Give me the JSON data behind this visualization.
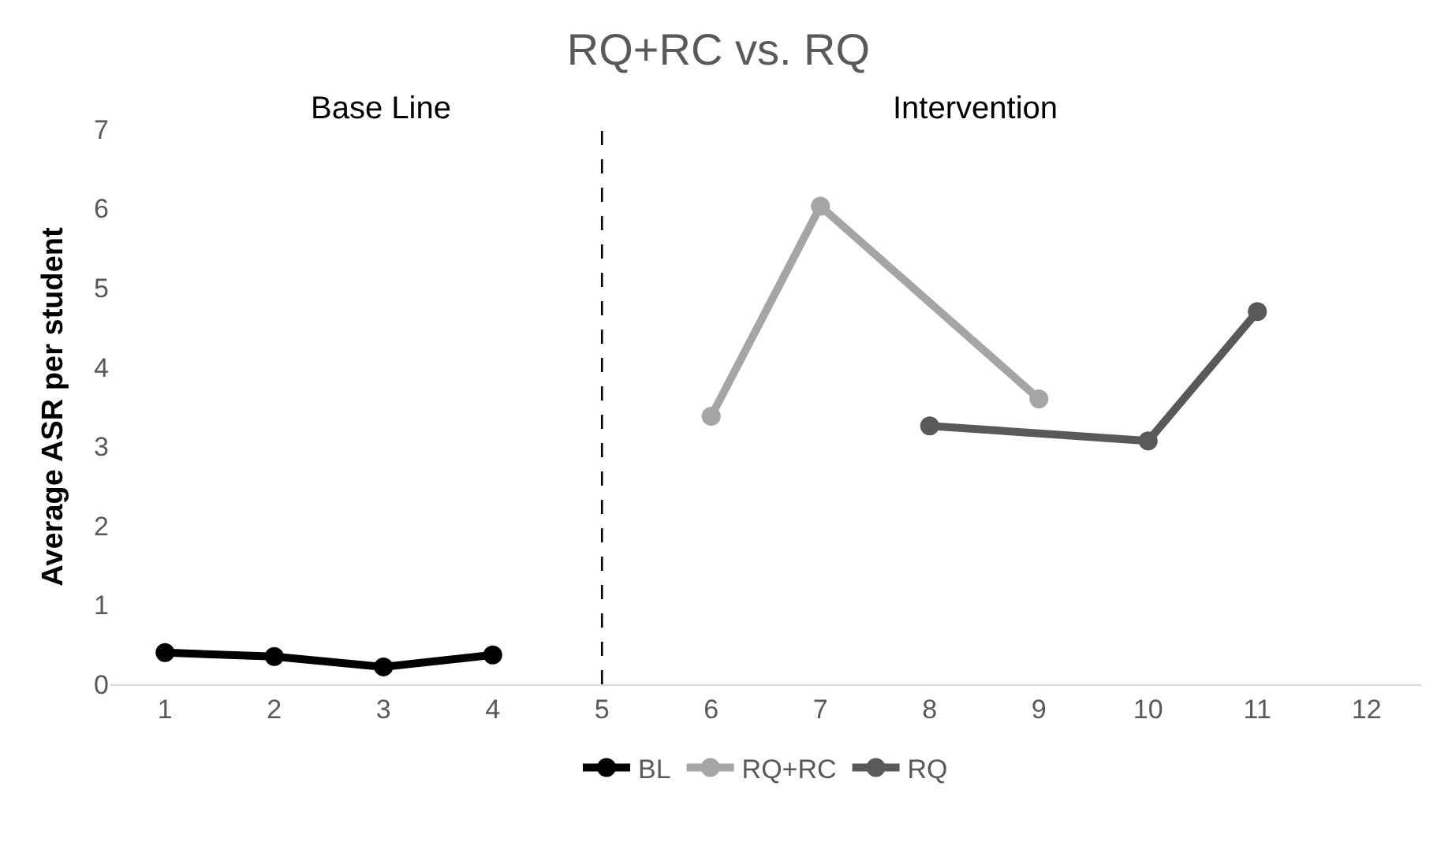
{
  "chart_data": {
    "type": "line",
    "title": "RQ+RC vs. RQ",
    "ylabel": "Average ASR per student",
    "annotations": [
      "Base Line",
      "Intervention"
    ],
    "series": [
      {
        "name": "BL",
        "color": "#000000",
        "x": [
          1,
          2,
          3,
          4
        ],
        "values": [
          0.4,
          0.35,
          0.22,
          0.37
        ]
      },
      {
        "name": "RQ+RC",
        "color": "#a5a5a5",
        "x": [
          6,
          7,
          9
        ],
        "values": [
          3.38,
          6.03,
          3.6
        ]
      },
      {
        "name": "RQ",
        "color": "#595959",
        "x": [
          8,
          10,
          11
        ],
        "values": [
          3.26,
          3.07,
          4.7
        ]
      }
    ],
    "xlim": [
      0.5,
      12.5
    ],
    "xticks": [
      1,
      2,
      3,
      4,
      5,
      6,
      7,
      8,
      9,
      10,
      11,
      12
    ],
    "ylim": [
      0,
      7
    ],
    "yticks": [
      0,
      1,
      2,
      3,
      4,
      5,
      6,
      7
    ],
    "ref_lines": [
      {
        "axis": "x",
        "value": 5,
        "color": "#000000",
        "line_style": "dashed"
      }
    ],
    "grid": false,
    "legend": "bottom",
    "marker": "circle",
    "line_style": "solid"
  }
}
